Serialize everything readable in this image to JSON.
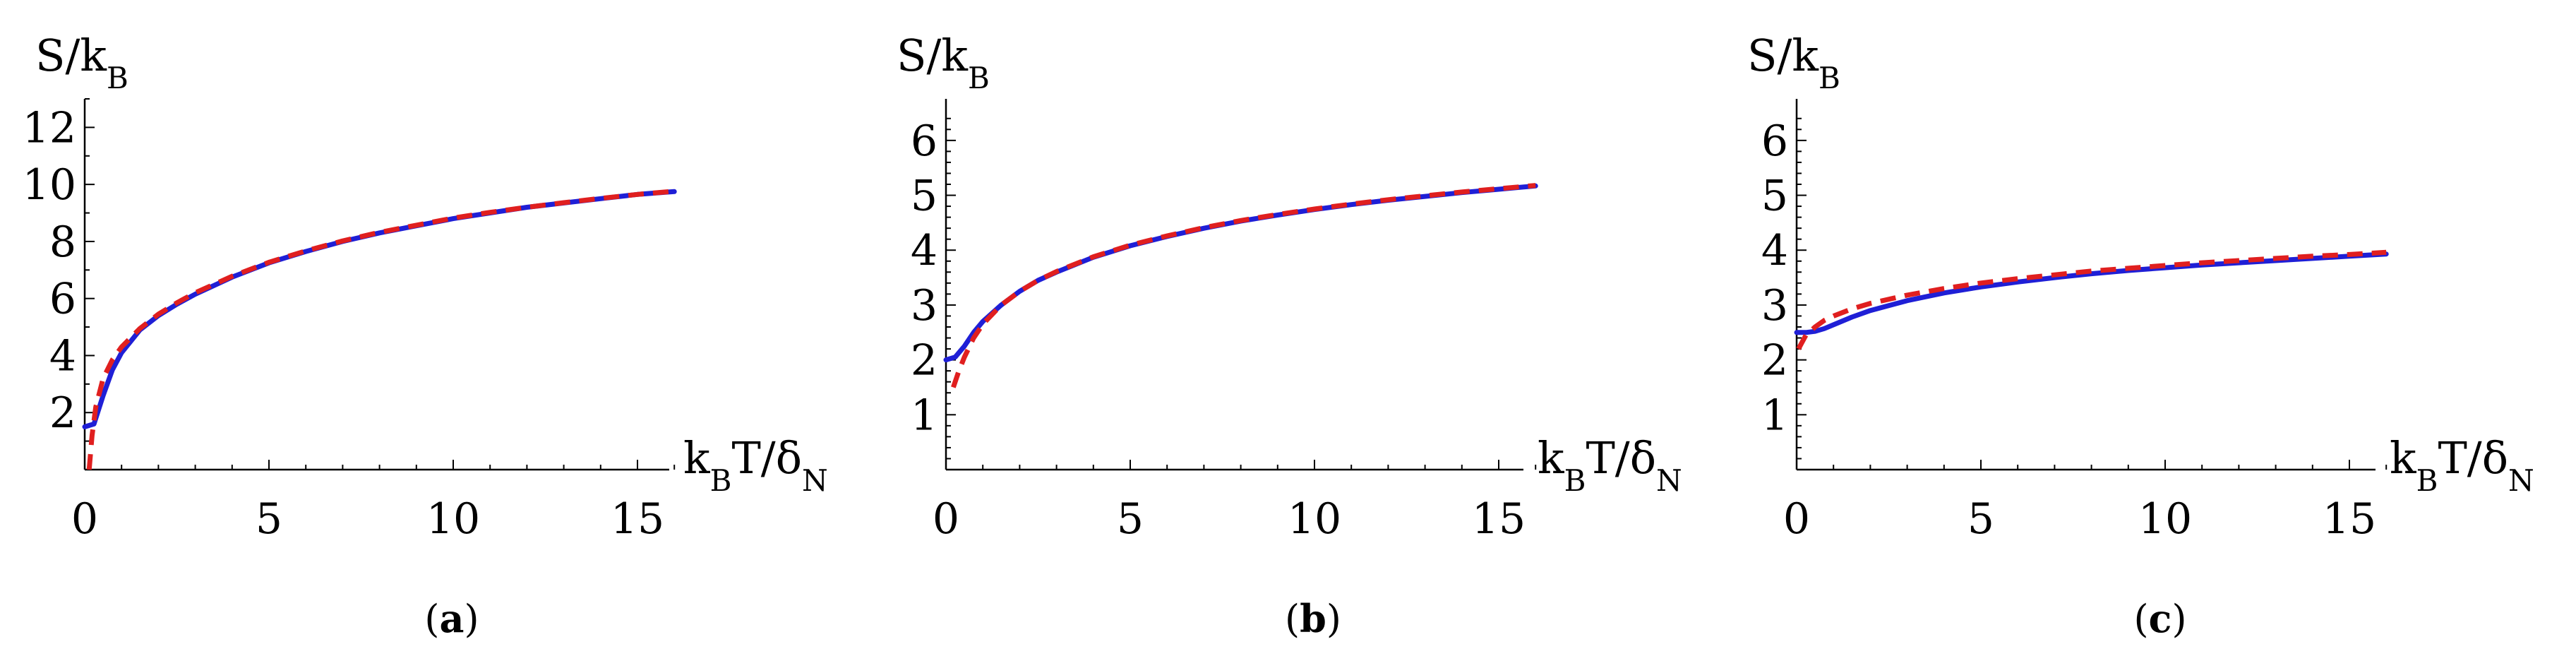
{
  "colors": {
    "exact": "#1f1fd6",
    "approx": "#e01f1f",
    "axis": "#000000"
  },
  "chart_data": [
    {
      "type": "line",
      "panel_label": "a",
      "ylabel": "S/k_B",
      "xlabel": "k_BT/δ_N",
      "xlim": [
        0,
        16
      ],
      "ylim": [
        0,
        13
      ],
      "xticks": [
        0,
        5,
        10,
        15
      ],
      "yticks": [
        2,
        4,
        6,
        8,
        10,
        12
      ],
      "grid": false,
      "series": [
        {
          "style": "solid",
          "color": "#1f1fd6",
          "x": [
            0,
            0.25,
            0.5,
            0.75,
            1,
            1.5,
            2,
            2.5,
            3,
            4,
            5,
            6,
            7,
            8,
            9,
            10,
            11,
            12,
            13,
            14,
            15,
            16
          ],
          "y": [
            1.5,
            1.6,
            2.6,
            3.5,
            4.1,
            4.9,
            5.4,
            5.8,
            6.15,
            6.75,
            7.25,
            7.65,
            8.0,
            8.3,
            8.55,
            8.8,
            9.0,
            9.2,
            9.35,
            9.5,
            9.65,
            9.75
          ]
        },
        {
          "style": "dashed",
          "color": "#e01f1f",
          "x": [
            0.12,
            0.2,
            0.3,
            0.5,
            0.75,
            1,
            1.5,
            2,
            2.5,
            3,
            4,
            5,
            6,
            7,
            8,
            9,
            10,
            11,
            12,
            13,
            14,
            15,
            16
          ],
          "y": [
            0,
            1.2,
            2.2,
            3.2,
            3.85,
            4.3,
            4.95,
            5.45,
            5.85,
            6.2,
            6.78,
            7.27,
            7.67,
            8.02,
            8.32,
            8.57,
            8.82,
            9.02,
            9.2,
            9.36,
            9.51,
            9.65,
            9.76
          ]
        }
      ]
    },
    {
      "type": "line",
      "panel_label": "b",
      "ylabel": "S/k_B",
      "xlabel": "k_BT/δ_N",
      "xlim": [
        0,
        16
      ],
      "ylim": [
        0,
        6.5
      ],
      "xticks": [
        0,
        5,
        10,
        15
      ],
      "yticks": [
        1,
        2,
        3,
        4,
        5,
        6
      ],
      "grid": false,
      "series": [
        {
          "style": "solid",
          "color": "#1f1fd6",
          "x": [
            0,
            0.25,
            0.5,
            0.75,
            1,
            1.5,
            2,
            2.5,
            3,
            4,
            5,
            6,
            7,
            8,
            9,
            10,
            11,
            12,
            13,
            14,
            15,
            16
          ],
          "y": [
            2.0,
            2.05,
            2.25,
            2.5,
            2.7,
            3.0,
            3.25,
            3.45,
            3.6,
            3.87,
            4.08,
            4.25,
            4.4,
            4.53,
            4.64,
            4.74,
            4.83,
            4.91,
            4.98,
            5.05,
            5.11,
            5.17
          ]
        },
        {
          "style": "dashed",
          "color": "#e01f1f",
          "x": [
            0.2,
            0.35,
            0.5,
            0.75,
            1,
            1.5,
            2,
            2.5,
            3,
            4,
            5,
            6,
            7,
            8,
            9,
            10,
            11,
            12,
            13,
            14,
            15,
            16
          ],
          "y": [
            1.5,
            1.8,
            2.05,
            2.4,
            2.65,
            3.0,
            3.25,
            3.45,
            3.61,
            3.88,
            4.09,
            4.26,
            4.41,
            4.54,
            4.65,
            4.75,
            4.84,
            4.92,
            4.99,
            5.06,
            5.12,
            5.18
          ]
        }
      ]
    },
    {
      "type": "line",
      "panel_label": "c",
      "ylabel": "S/k_B",
      "xlabel": "k_BT/δ_N",
      "xlim": [
        0,
        16
      ],
      "ylim": [
        0,
        6.5
      ],
      "xticks": [
        0,
        5,
        10,
        15
      ],
      "yticks": [
        1,
        2,
        3,
        4,
        5,
        6
      ],
      "grid": false,
      "series": [
        {
          "style": "solid",
          "color": "#1f1fd6",
          "x": [
            0,
            0.25,
            0.5,
            0.75,
            1,
            1.5,
            2,
            3,
            4,
            5,
            6,
            7,
            8,
            9,
            10,
            11,
            12,
            13,
            14,
            15,
            16
          ],
          "y": [
            2.5,
            2.5,
            2.52,
            2.57,
            2.64,
            2.78,
            2.9,
            3.08,
            3.22,
            3.33,
            3.42,
            3.5,
            3.57,
            3.63,
            3.68,
            3.73,
            3.77,
            3.81,
            3.85,
            3.89,
            3.93
          ]
        },
        {
          "style": "dashed",
          "color": "#e01f1f",
          "x": [
            0.05,
            0.25,
            0.5,
            0.75,
            1,
            1.5,
            2,
            3,
            4,
            5,
            6,
            7,
            8,
            9,
            10,
            11,
            12,
            13,
            14,
            15,
            16
          ],
          "y": [
            2.2,
            2.45,
            2.6,
            2.72,
            2.8,
            2.93,
            3.03,
            3.18,
            3.3,
            3.4,
            3.48,
            3.55,
            3.62,
            3.67,
            3.72,
            3.77,
            3.81,
            3.85,
            3.89,
            3.92,
            3.96
          ]
        }
      ]
    }
  ]
}
